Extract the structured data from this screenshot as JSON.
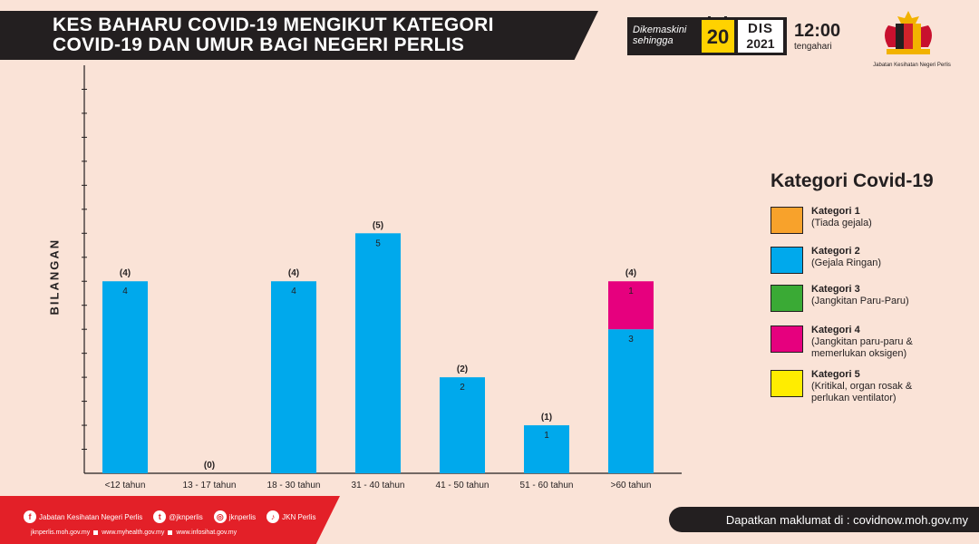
{
  "header": {
    "title_line1": "KES BAHARU COVID-19 MENGIKUT KATEGORI",
    "title_line2": "COVID-19 DAN UMUR BAGI NEGERI PERLIS",
    "updated_label_1": "Dikemaskini",
    "updated_label_2": "sehingga",
    "day": "20",
    "month": "DIS",
    "year": "2021",
    "time": "12:00",
    "time_label": "tengahari",
    "logo_caption": "Jabatan Kesihatan Negeri Perlis"
  },
  "chart_data": {
    "type": "bar",
    "stacked": true,
    "title": "KES BAHARU COVID-19 MENGIKUT KATEGORI COVID-19 DAN UMUR BAGI NEGERI PERLIS",
    "xlabel": "",
    "ylabel": "BILANGAN",
    "categories": [
      "<12 tahun",
      "13 - 17 tahun",
      "18 - 30 tahun",
      "31 - 40 tahun",
      "41 - 50 tahun",
      "51 - 60 tahun",
      ">60 tahun"
    ],
    "ylim": [
      0,
      8.5
    ],
    "grid": false,
    "series": [
      {
        "name": "Kategori 1",
        "color": "#f8a22b",
        "values": [
          0,
          0,
          0,
          0,
          0,
          0,
          0
        ]
      },
      {
        "name": "Kategori 2",
        "color": "#00a9ec",
        "values": [
          4,
          0,
          4,
          5,
          2,
          1,
          3
        ]
      },
      {
        "name": "Kategori 3",
        "color": "#3aaa35",
        "values": [
          0,
          0,
          0,
          0,
          0,
          0,
          0
        ]
      },
      {
        "name": "Kategori 4",
        "color": "#e6007e",
        "values": [
          0,
          0,
          0,
          0,
          0,
          0,
          1
        ]
      },
      {
        "name": "Kategori 5",
        "color": "#ffed00",
        "values": [
          0,
          0,
          0,
          0,
          0,
          0,
          0
        ]
      }
    ],
    "totals": [
      4,
      0,
      4,
      5,
      2,
      1,
      4
    ],
    "legend_position": "right"
  },
  "legend": {
    "title": "Kategori Covid-19",
    "items": [
      {
        "name": "Kategori 1",
        "desc": "(Tiada gejala)",
        "color": "#f8a22b"
      },
      {
        "name": "Kategori 2",
        "desc": "(Gejala Ringan)",
        "color": "#00a9ec"
      },
      {
        "name": "Kategori 3",
        "desc": "(Jangkitan Paru-Paru)",
        "color": "#3aaa35"
      },
      {
        "name": "Kategori 4",
        "desc": "(Jangkitan paru-paru &\nmemerlukan oksigen)",
        "color": "#e6007e"
      },
      {
        "name": "Kategori 5",
        "desc": "(Kritikal, organ rosak &\nperlukan ventilator)",
        "color": "#ffed00"
      }
    ]
  },
  "footer": {
    "social": [
      {
        "icon": "facebook-icon",
        "glyph": "f",
        "label": "Jabatan Kesihatan Negeri Perlis"
      },
      {
        "icon": "twitter-icon",
        "glyph": "t",
        "label": "@jknperlis"
      },
      {
        "icon": "instagram-icon",
        "glyph": "◎",
        "label": "jknperlis"
      },
      {
        "icon": "tiktok-icon",
        "glyph": "♪",
        "label": "JKN Perlis"
      }
    ],
    "websites": [
      "jknperlis.moh.gov.my",
      "www.myhealth.gov.my",
      "www.infosihat.gov.my"
    ],
    "info": "Dapatkan maklumat di : covidnow.moh.gov.my"
  }
}
